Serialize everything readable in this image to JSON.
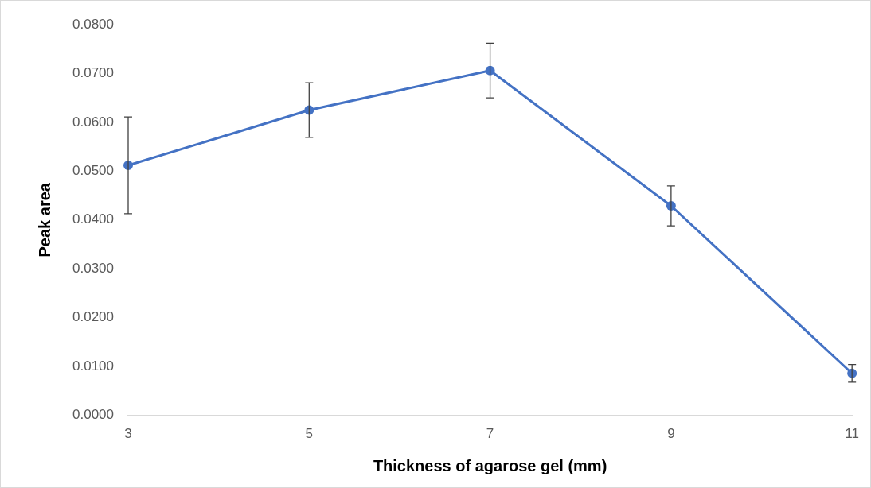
{
  "chart_data": {
    "type": "line",
    "xlabel": "Thickness of agarose gel (mm)",
    "ylabel": "Peak area",
    "categories": [
      "3",
      "5",
      "7",
      "9",
      "11"
    ],
    "series": [
      {
        "color": "#4472c4",
        "values": [
          0.0512,
          0.0625,
          0.0706,
          0.0429,
          0.0086
        ],
        "errors": [
          0.0099,
          0.0056,
          0.0056,
          0.0041,
          0.0018
        ]
      }
    ],
    "ylim": [
      0,
      0.08
    ],
    "yticks": [
      {
        "value": 0,
        "label": "0.0000"
      },
      {
        "value": 0.01,
        "label": "0.0100"
      },
      {
        "value": 0.02,
        "label": "0.0200"
      },
      {
        "value": 0.03,
        "label": "0.0300"
      },
      {
        "value": 0.04,
        "label": "0.0400"
      },
      {
        "value": 0.05,
        "label": "0.0500"
      },
      {
        "value": 0.06,
        "label": "0.0600"
      },
      {
        "value": 0.07,
        "label": "0.0700"
      },
      {
        "value": 0.08,
        "label": "0.0800"
      }
    ],
    "marker": "circle",
    "line_style": "solid",
    "grid": false,
    "legend": false
  }
}
